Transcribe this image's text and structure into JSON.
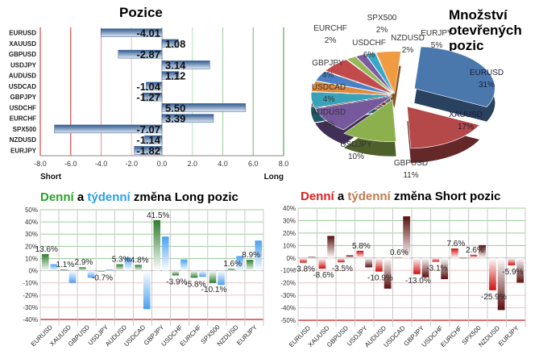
{
  "chart_data": [
    {
      "type": "bar",
      "orientation": "horizontal",
      "title": "Pozice",
      "categories": [
        "EURUSD",
        "XAUUSD",
        "GBPUSD",
        "USDJPY",
        "AUDUSD",
        "USDCAD",
        "GBPJPY",
        "USDCHF",
        "EURCHF",
        "SPX500",
        "NZDUSD",
        "EURJPY"
      ],
      "values": [
        -4.01,
        1.08,
        -2.87,
        3.14,
        1.12,
        -1.04,
        -1.27,
        5.5,
        3.39,
        -7.07,
        -1.14,
        -1.82
      ],
      "value_labels": [
        "-4.01",
        "1.08",
        "-2.87",
        "3.14",
        "1.12",
        "-1.04",
        "-1.27",
        "5.50",
        "3.39",
        "-7.07",
        "-1.14",
        "-1.82"
      ],
      "xlim": [
        -8,
        8
      ],
      "xticks": [
        "-8.0",
        "-6.0",
        "-4.0",
        "-2.0",
        "0.0",
        "2.0",
        "4.0",
        "6.0",
        "8.0"
      ],
      "xlabel_left": "Short",
      "xlabel_right": "Long",
      "bar_color": "#4a72a8",
      "grid": true
    },
    {
      "type": "pie",
      "title": "Množství otevřených pozic",
      "labels": [
        "EURUSD",
        "XAUUSD",
        "GBPUSD",
        "USDJPY",
        "AUDUSD",
        "USDCAD",
        "GBPJPY",
        "USDCHF",
        "EURCHF",
        "SPX500",
        "NZDUSD",
        "EURJPY"
      ],
      "values": [
        31,
        17,
        11,
        10,
        6,
        4,
        4,
        6,
        2,
        2,
        2,
        5
      ],
      "value_labels": [
        "31%",
        "17%",
        "11%",
        "10%",
        "6%",
        "4%",
        "4%",
        "6%",
        "2%",
        "2%",
        "2%",
        "5%"
      ],
      "colors": [
        "#4a78ad",
        "#b54848",
        "#8db04e",
        "#76589c",
        "#38a2b9",
        "#e0893a",
        "#4a80c6",
        "#c24a4a",
        "#97b857",
        "#7a5ca0",
        "#37a8c8",
        "#f09a42"
      ]
    },
    {
      "type": "bar",
      "title_parts": [
        "Denní",
        " a ",
        "týdenní",
        " změna Long pozic"
      ],
      "title_colors": [
        "#2ca02c",
        "#000000",
        "#2aa0e8",
        "#000000"
      ],
      "categories": [
        "EURUSD",
        "XAUUSD",
        "GBPUSD",
        "USDJPY",
        "AUDUSD",
        "USDCAD",
        "GBPJPY",
        "USDCHF",
        "EURCHF",
        "SPX500",
        "NZDUSD",
        "EURJPY"
      ],
      "series": [
        {
          "values": [
            13.6,
            1.1,
            2.9,
            -0.7,
            5.3,
            4.8,
            41.5,
            -3.9,
            -5.8,
            -10.1,
            1.6,
            8.9
          ],
          "color": "#2e7d2e",
          "labels": [
            "13.6%",
            "1.1%",
            "2.9%",
            "-0.7%",
            "5.3%",
            "4.8%",
            "41.5%",
            "-3.9%",
            "-5.8%",
            "-10.1%",
            "1.6%",
            "8.9%"
          ]
        },
        {
          "values": [
            5.3,
            -10,
            -5.7,
            1.1,
            10.8,
            -31.5,
            28,
            9.2,
            -5,
            -11.7,
            12,
            24.7
          ],
          "color": "#4aa0f0"
        }
      ],
      "ylim": [
        -40,
        50
      ],
      "yticks": [
        "50%",
        "40%",
        "30%",
        "20%",
        "10%",
        "0%",
        "-10%",
        "-20%",
        "-30%",
        "-40%"
      ],
      "grid": true
    },
    {
      "type": "bar",
      "title_parts": [
        "Denní",
        " a ",
        "týdenní",
        " změna Short pozic"
      ],
      "title_colors": [
        "#e02020",
        "#000000",
        "#c07a50",
        "#000000"
      ],
      "categories": [
        "EURUSD",
        "XAUUSD",
        "GBPUSD",
        "USDJPY",
        "AUDUSD",
        "USDCAD",
        "GBPJPY",
        "USDCHF",
        "EURCHF",
        "SPX500",
        "NZDUSD",
        "EURJPY"
      ],
      "series": [
        {
          "values": [
            -3.8,
            -8.6,
            -3.5,
            5.8,
            -10.9,
            0.6,
            -13.0,
            -3.1,
            7.6,
            2.6,
            -25.9,
            -5.9
          ],
          "color": "#d01010",
          "labels": [
            "-3.8%",
            "-8.6%",
            "-3.5%",
            "5.8%",
            "-10.9%",
            "0.6%",
            "-13.0%",
            "-3.1%",
            "7.6%",
            "2.6%",
            "-25.9%",
            "-5.9%"
          ]
        },
        {
          "values": [
            0.9,
            17.7,
            2.2,
            -7.5,
            -24.6,
            33.4,
            -15.5,
            -17,
            0,
            10.3,
            -41.8,
            -19.8
          ],
          "color": "#5a0e0e"
        }
      ],
      "ylim": [
        -50,
        40
      ],
      "yticks": [
        "40%",
        "30%",
        "20%",
        "10%",
        "0%",
        "-10%",
        "-20%",
        "-30%",
        "-40%",
        "-50%"
      ],
      "grid": true
    }
  ]
}
